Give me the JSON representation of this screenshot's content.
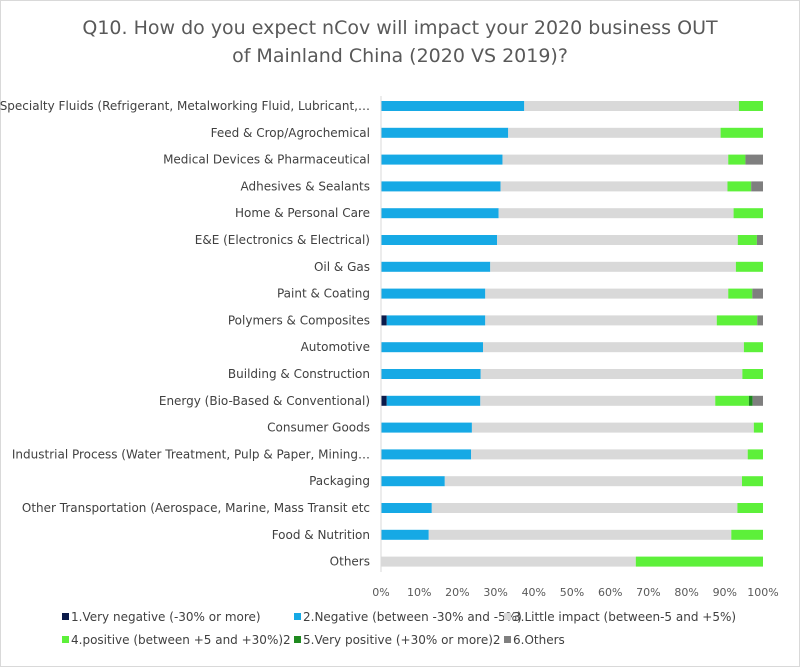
{
  "chart_data": {
    "type": "bar",
    "stacked": true,
    "orientation": "horizontal",
    "title_lines": [
      "Q10. How do you expect nCov will impact your 2020 business OUT",
      "of Mainland China (2020 VS 2019)?"
    ],
    "categories": [
      "Specialty Fluids (Refrigerant, Metalworking Fluid, Lubricant,…",
      "Feed & Crop/Agrochemical",
      "Medical Devices & Pharmaceutical",
      "Adhesives & Sealants",
      "Home & Personal Care",
      "E&E (Electronics & Electrical)",
      "Oil & Gas",
      "Paint & Coating",
      "Polymers & Composites",
      "Automotive",
      "Building & Construction",
      "Energy (Bio-Based & Conventional)",
      "Consumer Goods",
      "Industrial Process (Water Treatment, Pulp & Paper, Mining…",
      "Packaging",
      "Other Transportation (Aerospace, Marine, Mass Transit etc",
      "Food & Nutrition",
      "Others"
    ],
    "series": [
      {
        "name": "1.Very negative (-30% or more)",
        "color": "#0b1a4a",
        "values": [
          0,
          0,
          0,
          0,
          0,
          0,
          0,
          0,
          1.5,
          0,
          0,
          1.5,
          0,
          0,
          0,
          0,
          0,
          0
        ]
      },
      {
        "name": "2.Negative (between -30% and -5%)",
        "color": "#16a9e5",
        "values": [
          37.5,
          33.3,
          31.8,
          31.3,
          30.8,
          30.4,
          28.6,
          27.3,
          25.8,
          26.7,
          26.1,
          24.5,
          23.8,
          23.6,
          16.7,
          13.3,
          12.5,
          0
        ]
      },
      {
        "name": "3.Little impact (between-5 and +5%)",
        "color": "#d9d9d9",
        "values": [
          56.2,
          55.6,
          59.1,
          59.4,
          61.5,
          63.0,
          64.3,
          63.6,
          60.6,
          68.3,
          68.5,
          61.5,
          73.8,
          72.4,
          77.8,
          80.0,
          79.2,
          66.7
        ]
      },
      {
        "name": "4.positive (between +5 and +30%)2",
        "color": "#5df03a",
        "values": [
          6.3,
          11.1,
          4.5,
          6.2,
          7.7,
          5.0,
          7.1,
          6.3,
          10.6,
          5.0,
          5.4,
          8.8,
          2.4,
          4.0,
          5.5,
          6.7,
          8.3,
          33.3
        ]
      },
      {
        "name": "5.Very positive (+30% or more)2",
        "color": "#1f8a1f",
        "values": [
          0,
          0,
          0,
          0,
          0,
          0,
          0,
          0,
          0,
          0,
          0,
          1.0,
          0,
          0,
          0,
          0,
          0,
          0
        ]
      },
      {
        "name": "6.Others",
        "color": "#7f7f7f",
        "values": [
          0,
          0,
          4.6,
          3.1,
          0,
          1.6,
          0,
          2.8,
          1.5,
          0,
          0,
          2.7,
          0,
          0,
          0,
          0,
          0,
          0
        ]
      }
    ],
    "xlim": [
      0,
      100
    ],
    "xticks": [
      "0%",
      "10%",
      "20%",
      "30%",
      "40%",
      "50%",
      "60%",
      "70%",
      "80%",
      "90%",
      "100%"
    ],
    "grid": false,
    "legend_position": "bottom"
  }
}
